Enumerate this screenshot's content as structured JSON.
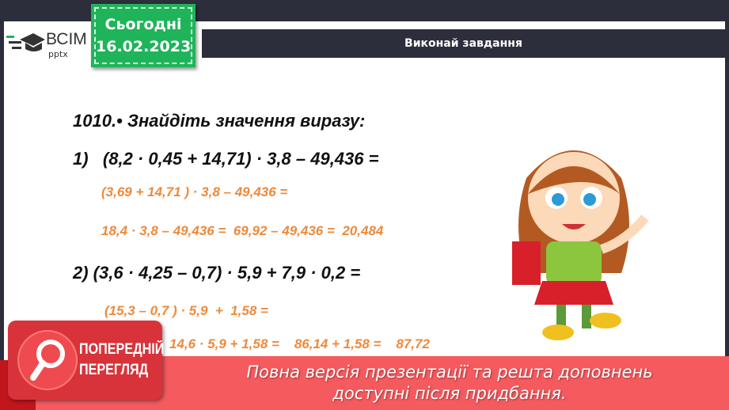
{
  "logo": {
    "brand": "ВСІМ",
    "sub": "pptx"
  },
  "date_badge": {
    "label": "Сьогодні",
    "date": "16.02.2023"
  },
  "header": {
    "title": "Виконай завдання"
  },
  "task": {
    "title": "1010.• Знайдіть значення виразу:",
    "p1": "1)   (8,2 · 0,45 + 14,71) · 3,8 – 49,436 =",
    "p1_step1": "(3,69 + 14,71 ) · 3,8 – 49,436 =",
    "p1_step2": "18,4 · 3,8 – 49,436 =  69,92 – 49,436 =  20,484",
    "p2": "2) (3,6 · 4,25 – 0,7) · 5,9 + 7,9 · 0,2 =",
    "p2_step1": "(15,3 – 0,7 ) · 5,9  +  1,58 =",
    "p2_step2": "14,6 · 5,9 + 1,58 =    86,14 + 1,58 =    87,72"
  },
  "preview_badge": {
    "line1": "ПОПЕРЕДНІЙ",
    "line2": "ПЕРЕГЛЯД"
  },
  "banner": {
    "line1": "Повна версія презентації та решта доповнень",
    "line2": "доступні після придбання."
  },
  "colors": {
    "accent_green": "#1fb45a",
    "dark": "#2d2e3c",
    "orange": "#ec8a3c",
    "banner_red": "#f55a5e"
  }
}
